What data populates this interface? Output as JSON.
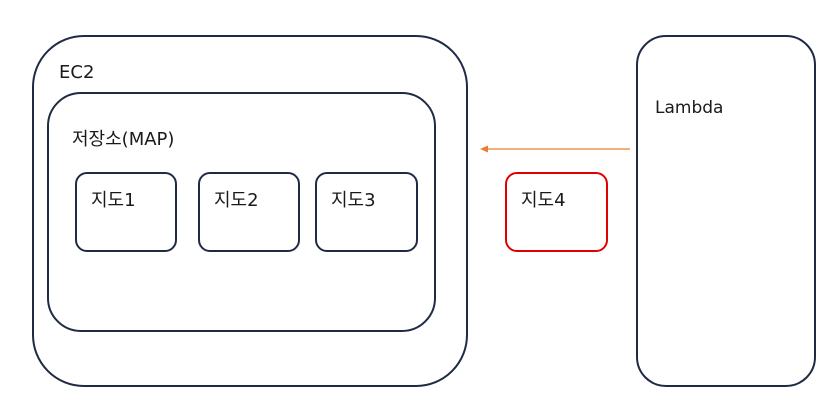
{
  "ec2": {
    "label": "EC2"
  },
  "storage": {
    "label": "저장소(MAP)",
    "maps": [
      {
        "label": "지도1"
      },
      {
        "label": "지도2"
      },
      {
        "label": "지도3"
      }
    ]
  },
  "transfer_map": {
    "label": "지도4",
    "border_color": "#e00000"
  },
  "lambda": {
    "label": "Lambda"
  },
  "arrow": {
    "color": "#ed7d31",
    "direction": "lambda-to-ec2"
  },
  "colors": {
    "box_border": "#1f2a44"
  }
}
